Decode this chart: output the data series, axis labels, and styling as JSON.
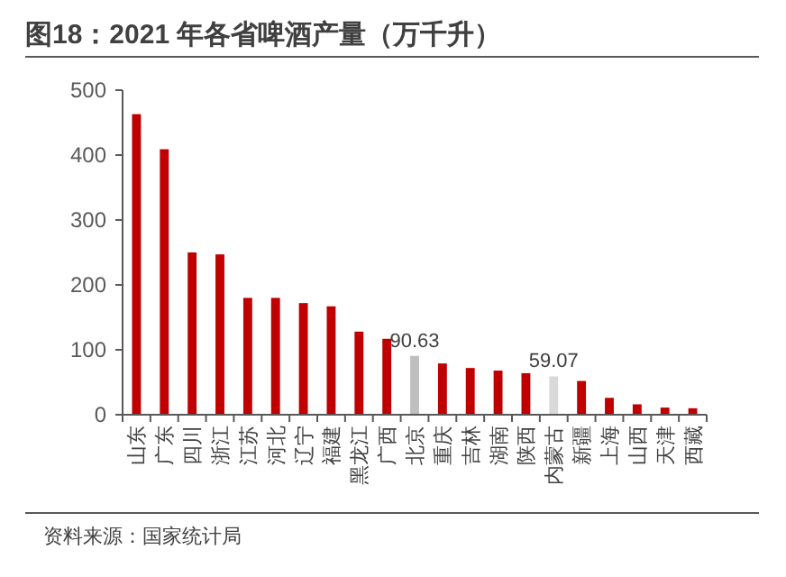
{
  "chart_data": {
    "type": "bar",
    "title": "图18：2021 年各省啤酒产量（万千升）",
    "categories": [
      "山东",
      "广东",
      "四川",
      "浙江",
      "江苏",
      "河北",
      "辽宁",
      "福建",
      "黑龙江",
      "广西",
      "北京",
      "重庆",
      "吉林",
      "湖南",
      "陕西",
      "内蒙古",
      "新疆",
      "上海",
      "山西",
      "天津",
      "西藏"
    ],
    "values": [
      463,
      409,
      250,
      247,
      180,
      180,
      172,
      167,
      128,
      117,
      90.63,
      79,
      72,
      68,
      64,
      59.07,
      52,
      26,
      16,
      11,
      10
    ],
    "colors": [
      "#c00000",
      "#c00000",
      "#c00000",
      "#c00000",
      "#c00000",
      "#c00000",
      "#c00000",
      "#c00000",
      "#c00000",
      "#c00000",
      "#bfbfbf",
      "#c00000",
      "#c00000",
      "#c00000",
      "#c00000",
      "#d9d9d9",
      "#c00000",
      "#c00000",
      "#c00000",
      "#c00000",
      "#c00000"
    ],
    "value_labels": [
      null,
      null,
      null,
      null,
      null,
      null,
      null,
      null,
      null,
      null,
      "90.63",
      null,
      null,
      null,
      null,
      "59.07",
      null,
      null,
      null,
      null,
      null
    ],
    "ylim": [
      0,
      500
    ],
    "yticks": [
      0,
      100,
      200,
      300,
      400,
      500
    ],
    "annotations": [
      "资料来源：国家统计局"
    ]
  }
}
